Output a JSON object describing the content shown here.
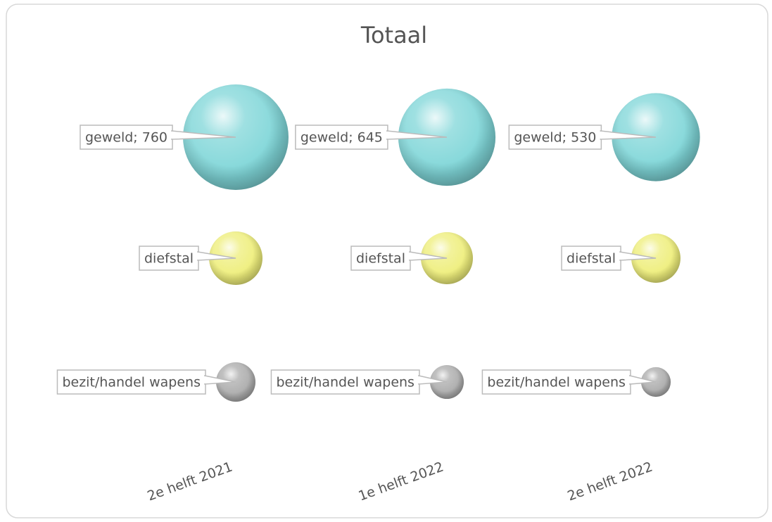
{
  "chart_data": {
    "type": "bubble",
    "title": "Totaal",
    "categories": [
      "2e helft 2021",
      "1e helft 2022",
      "2e helft 2022"
    ],
    "series": [
      {
        "name": "geweld",
        "color": "#7fd6d8",
        "values": [
          760,
          645,
          530
        ],
        "value_labels": [
          "geweld; 760",
          "geweld; 645",
          "geweld; 530"
        ]
      },
      {
        "name": "diefstal",
        "color": "#eeee7a",
        "values": [
          195,
          185,
          165
        ]
      },
      {
        "name": "bezit/handel wapens",
        "color": "#ababab",
        "values": [
          106,
          78,
          60
        ]
      }
    ]
  }
}
